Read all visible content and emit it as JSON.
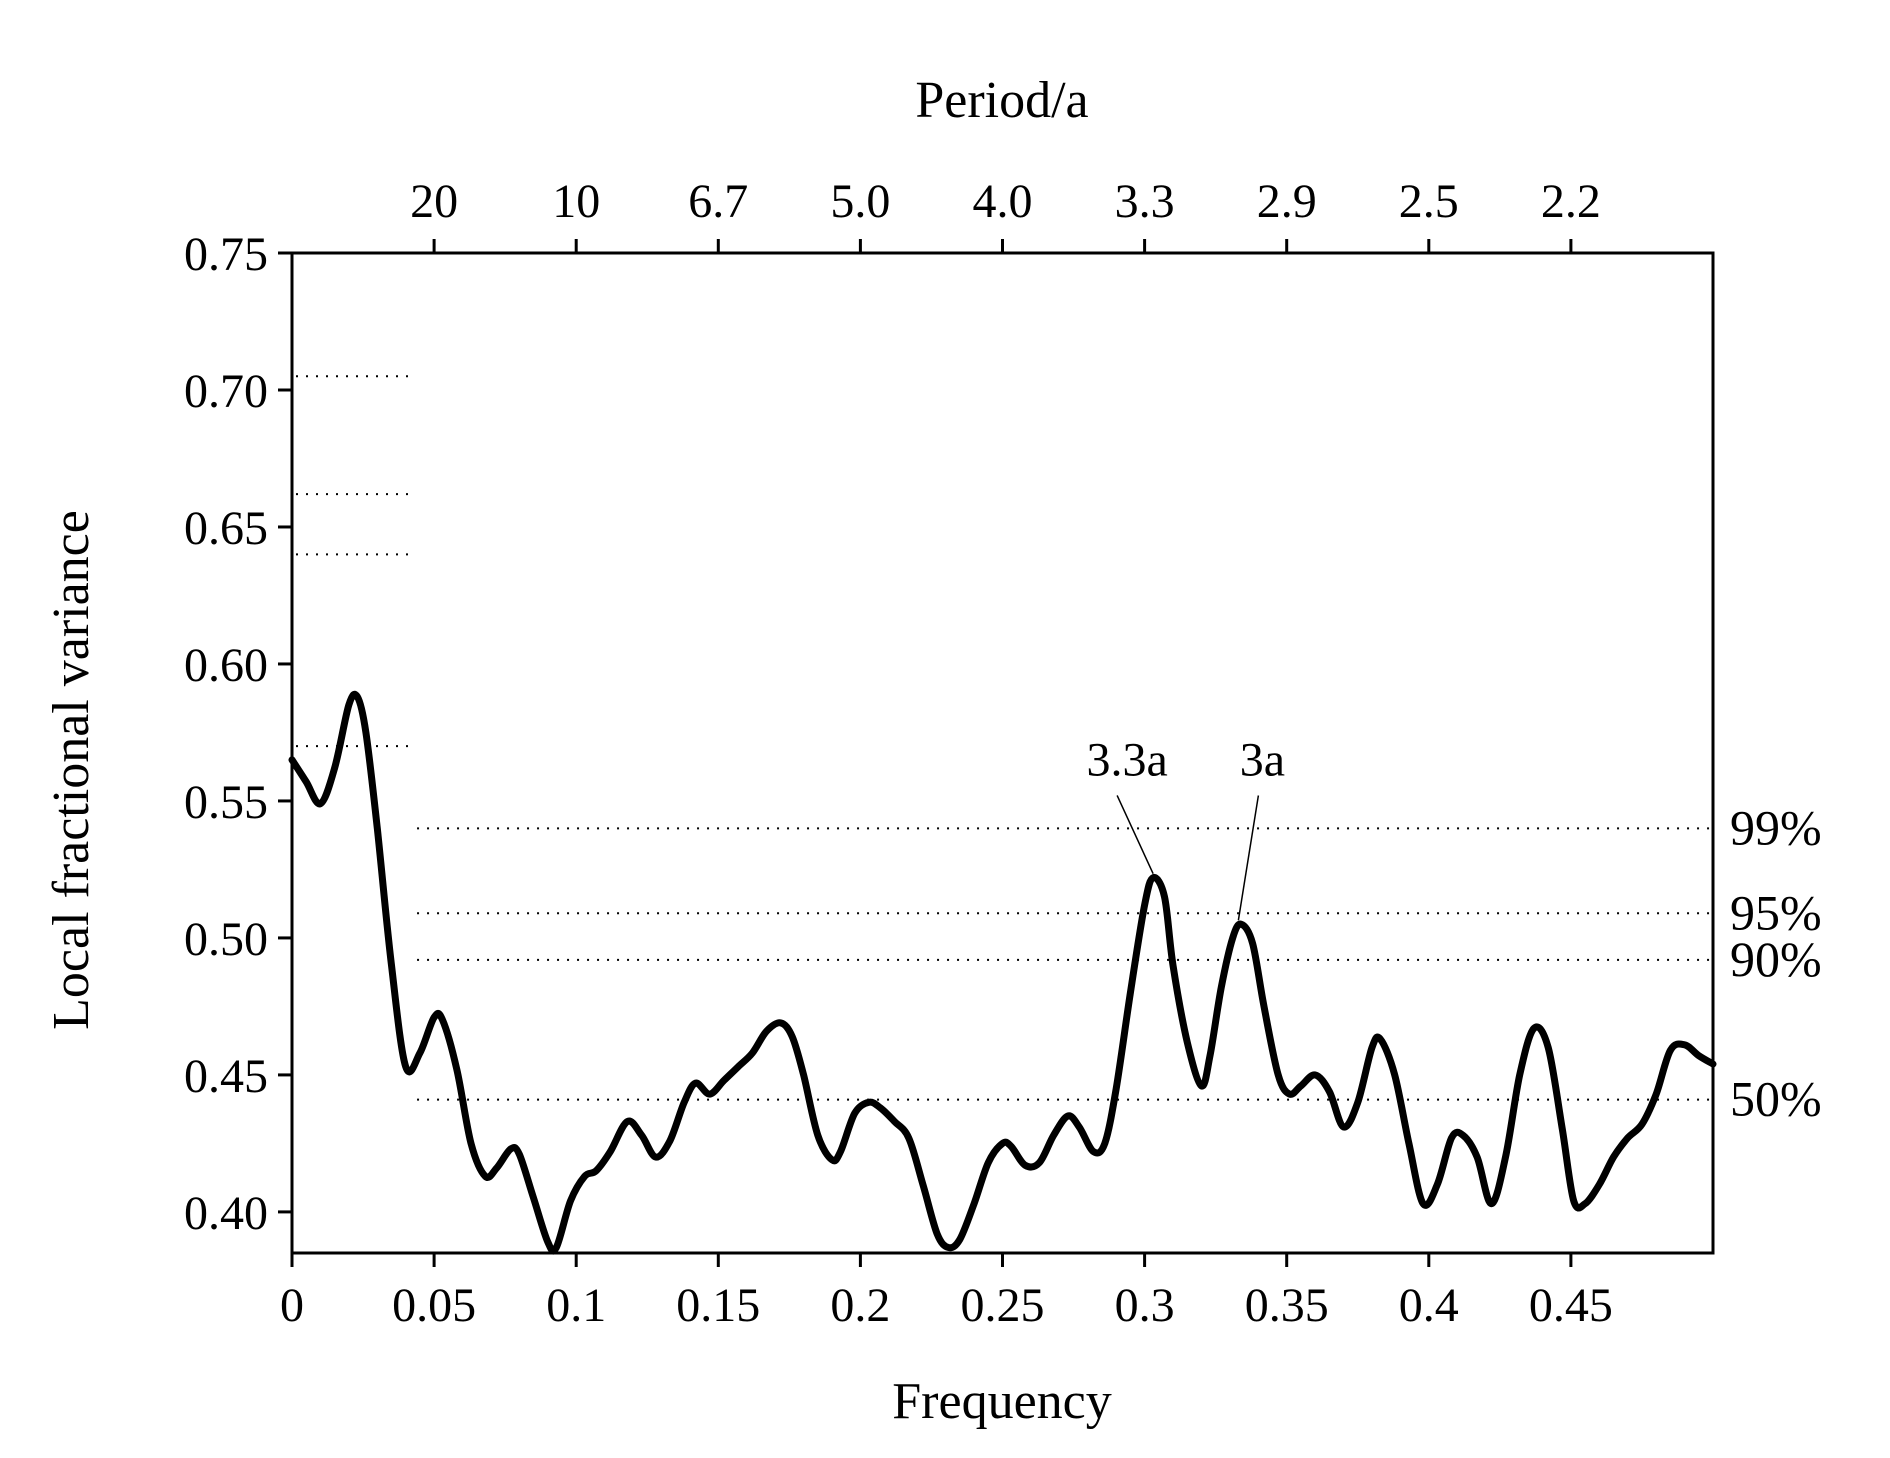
{
  "chart_data": {
    "type": "line",
    "xlabel": "Frequency",
    "ylabel": "Local fractional variance",
    "top_xlabel": "Period/a",
    "xlim": [
      0,
      0.5
    ],
    "ylim": [
      0.385,
      0.75
    ],
    "x_ticks": [
      "0",
      "0.05",
      "0.1",
      "0.15",
      "0.2",
      "0.25",
      "0.3",
      "0.35",
      "0.4",
      "0.45"
    ],
    "y_ticks": [
      "0.40",
      "0.45",
      "0.50",
      "0.55",
      "0.60",
      "0.65",
      "0.70",
      "0.75"
    ],
    "top_ticks": [
      {
        "label": "20",
        "freq": 0.05
      },
      {
        "label": "10",
        "freq": 0.1
      },
      {
        "label": "6.7",
        "freq": 0.15
      },
      {
        "label": "5.0",
        "freq": 0.2
      },
      {
        "label": "4.0",
        "freq": 0.25
      },
      {
        "label": "3.3",
        "freq": 0.3
      },
      {
        "label": "2.9",
        "freq": 0.35
      },
      {
        "label": "2.5",
        "freq": 0.4
      },
      {
        "label": "2.2",
        "freq": 0.45
      }
    ],
    "significance_levels": [
      {
        "label": "99%",
        "value": 0.54
      },
      {
        "label": "95%",
        "value": 0.509
      },
      {
        "label": "90%",
        "value": 0.492
      },
      {
        "label": "50%",
        "value": 0.441
      }
    ],
    "low_frequency_levels": [
      0.705,
      0.662,
      0.64,
      0.57
    ],
    "annotations": [
      {
        "text": "3.3a",
        "x": 0.303,
        "y": 0.522
      },
      {
        "text": "3a",
        "x": 0.333,
        "y": 0.505
      }
    ],
    "series": [
      {
        "x": [
          0,
          0.005,
          0.01,
          0.015,
          0.02,
          0.023,
          0.026,
          0.03,
          0.035,
          0.04,
          0.045,
          0.05,
          0.053,
          0.058,
          0.063,
          0.068,
          0.072,
          0.077,
          0.08,
          0.085,
          0.09,
          0.093,
          0.098,
          0.103,
          0.107,
          0.112,
          0.118,
          0.123,
          0.128,
          0.133,
          0.138,
          0.142,
          0.147,
          0.152,
          0.157,
          0.162,
          0.167,
          0.172,
          0.176,
          0.18,
          0.185,
          0.19,
          0.193,
          0.198,
          0.203,
          0.207,
          0.212,
          0.217,
          0.222,
          0.227,
          0.231,
          0.235,
          0.24,
          0.245,
          0.25,
          0.253,
          0.258,
          0.263,
          0.268,
          0.273,
          0.277,
          0.282,
          0.286,
          0.29,
          0.295,
          0.3,
          0.303,
          0.307,
          0.31,
          0.315,
          0.32,
          0.323,
          0.327,
          0.331,
          0.334,
          0.338,
          0.342,
          0.347,
          0.351,
          0.355,
          0.36,
          0.365,
          0.37,
          0.375,
          0.38,
          0.383,
          0.388,
          0.393,
          0.398,
          0.403,
          0.408,
          0.412,
          0.417,
          0.422,
          0.427,
          0.432,
          0.437,
          0.442,
          0.447,
          0.451,
          0.455,
          0.46,
          0.465,
          0.47,
          0.475,
          0.48,
          0.485,
          0.49,
          0.495,
          0.5
        ],
        "values": [
          0.565,
          0.557,
          0.549,
          0.562,
          0.585,
          0.588,
          0.575,
          0.54,
          0.49,
          0.453,
          0.458,
          0.471,
          0.47,
          0.452,
          0.425,
          0.413,
          0.416,
          0.423,
          0.421,
          0.405,
          0.389,
          0.387,
          0.404,
          0.413,
          0.415,
          0.422,
          0.433,
          0.428,
          0.42,
          0.426,
          0.44,
          0.447,
          0.443,
          0.448,
          0.453,
          0.458,
          0.466,
          0.469,
          0.464,
          0.45,
          0.428,
          0.419,
          0.422,
          0.436,
          0.44,
          0.438,
          0.433,
          0.427,
          0.41,
          0.392,
          0.387,
          0.39,
          0.403,
          0.418,
          0.425,
          0.424,
          0.417,
          0.418,
          0.428,
          0.435,
          0.431,
          0.422,
          0.425,
          0.445,
          0.48,
          0.512,
          0.522,
          0.515,
          0.49,
          0.462,
          0.446,
          0.457,
          0.482,
          0.5,
          0.505,
          0.498,
          0.475,
          0.45,
          0.443,
          0.446,
          0.45,
          0.444,
          0.431,
          0.44,
          0.46,
          0.463,
          0.45,
          0.425,
          0.403,
          0.41,
          0.427,
          0.428,
          0.42,
          0.403,
          0.42,
          0.45,
          0.467,
          0.46,
          0.43,
          0.404,
          0.403,
          0.41,
          0.42,
          0.427,
          0.432,
          0.443,
          0.459,
          0.461,
          0.457,
          0.454
        ]
      }
    ]
  }
}
